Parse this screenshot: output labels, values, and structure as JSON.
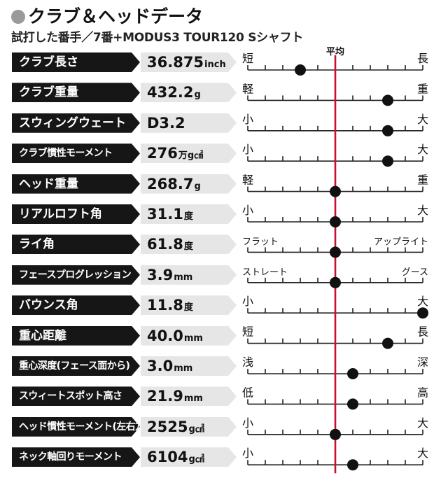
{
  "header": {
    "title": "クラブ＆ヘッドデータ",
    "subtitle": "試打した番手／7番+MODUS3 TOUR120 Sシャフト"
  },
  "chart_data": {
    "type": "dot-scale",
    "average_label": "平均",
    "average_color": "#c8102e",
    "rows": [
      {
        "label": "クラブ長さ",
        "value": "36.875",
        "unit": "inch",
        "left": "短",
        "right": "長",
        "position": 3
      },
      {
        "label": "クラブ重量",
        "value": "432.2",
        "unit": "g",
        "left": "軽",
        "right": "重",
        "position": 8
      },
      {
        "label": "スウィングウェート",
        "value": "D3.2",
        "unit": "",
        "left": "小",
        "right": "大",
        "position": 8
      },
      {
        "label": "クラブ慣性モーメント",
        "value": "276",
        "unit": "万g㎠",
        "left": "小",
        "right": "大",
        "position": 8
      },
      {
        "label": "ヘッド重量",
        "value": "268.7",
        "unit": "g",
        "left": "軽",
        "right": "重",
        "position": 5
      },
      {
        "label": "リアルロフト角",
        "value": "31.1",
        "unit": "度",
        "left": "小",
        "right": "大",
        "position": 5
      },
      {
        "label": "ライ角",
        "value": "61.8",
        "unit": "度",
        "left": "フラット",
        "right": "アップライト",
        "position": 5
      },
      {
        "label": "フェースプログレッション",
        "value": "3.9",
        "unit": "mm",
        "left": "ストレート",
        "right": "グース",
        "position": 5
      },
      {
        "label": "バウンス角",
        "value": "11.8",
        "unit": "度",
        "left": "小",
        "right": "大",
        "position": 10
      },
      {
        "label": "重心距離",
        "value": "40.0",
        "unit": "mm",
        "left": "短",
        "right": "長",
        "position": 8
      },
      {
        "label": "重心深度(フェース面から)",
        "value": "3.0",
        "unit": "mm",
        "left": "浅",
        "right": "深",
        "position": 6
      },
      {
        "label": "スウィートスポット高さ",
        "value": "21.9",
        "unit": "mm",
        "left": "低",
        "right": "高",
        "position": 6
      },
      {
        "label": "ヘッド慣性モーメント(左右方向)",
        "value": "2525",
        "unit": "g㎠",
        "left": "小",
        "right": "大",
        "position": 5
      },
      {
        "label": "ネック軸回りモーメント",
        "value": "6104",
        "unit": "g㎠",
        "left": "小",
        "right": "大",
        "position": 6
      }
    ]
  }
}
